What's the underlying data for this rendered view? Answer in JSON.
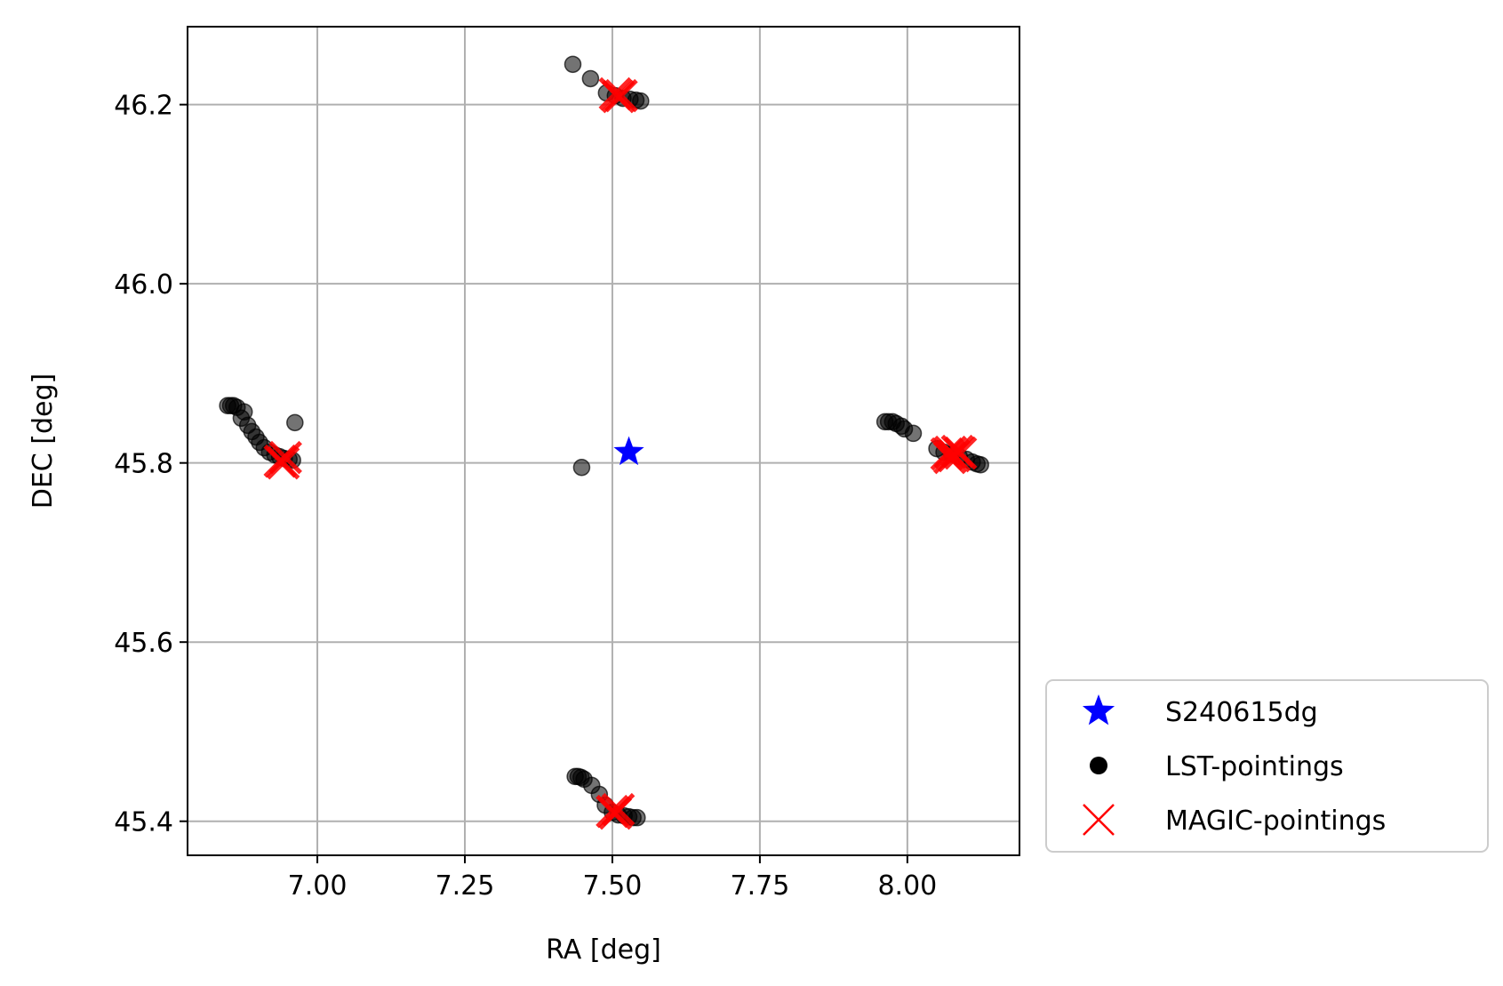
{
  "chart_data": {
    "type": "scatter",
    "xlabel": "RA [deg]",
    "ylabel": "DEC [deg]",
    "xlim": [
      6.78,
      8.19
    ],
    "ylim": [
      45.362,
      46.287
    ],
    "xticks": [
      7.0,
      7.25,
      7.5,
      7.75,
      8.0
    ],
    "xtick_labels": [
      "7.00",
      "7.25",
      "7.50",
      "7.75",
      "8.00"
    ],
    "yticks": [
      45.4,
      45.6,
      45.8,
      46.0,
      46.2
    ],
    "ytick_labels": [
      "45.4",
      "45.6",
      "45.8",
      "46.0",
      "46.2"
    ],
    "grid": true,
    "legend_position": "lower-right-outside",
    "series": [
      {
        "name": "S240615dg",
        "marker": "star",
        "color": "#0000ff",
        "points": [
          [
            7.528,
            45.812
          ]
        ]
      },
      {
        "name": "LST-pointings",
        "marker": "circle",
        "color": "#000000",
        "alpha": 0.55,
        "points": [
          [
            7.433,
            46.245
          ],
          [
            7.463,
            46.229
          ],
          [
            7.49,
            46.213
          ],
          [
            7.505,
            46.21
          ],
          [
            7.518,
            46.207
          ],
          [
            7.53,
            46.206
          ],
          [
            7.54,
            46.205
          ],
          [
            7.548,
            46.204
          ],
          [
            6.848,
            45.864
          ],
          [
            6.853,
            45.864
          ],
          [
            6.858,
            45.864
          ],
          [
            6.864,
            45.862
          ],
          [
            6.876,
            45.857
          ],
          [
            6.871,
            45.85
          ],
          [
            6.882,
            45.842
          ],
          [
            6.889,
            45.835
          ],
          [
            6.896,
            45.829
          ],
          [
            6.902,
            45.823
          ],
          [
            6.91,
            45.817
          ],
          [
            6.919,
            45.812
          ],
          [
            6.928,
            45.809
          ],
          [
            6.936,
            45.807
          ],
          [
            6.944,
            45.805
          ],
          [
            6.952,
            45.804
          ],
          [
            6.958,
            45.803
          ],
          [
            6.962,
            45.845
          ],
          [
            7.448,
            45.795
          ],
          [
            7.962,
            45.846
          ],
          [
            7.968,
            45.846
          ],
          [
            7.975,
            45.846
          ],
          [
            7.981,
            45.844
          ],
          [
            7.99,
            45.841
          ],
          [
            7.995,
            45.838
          ],
          [
            8.01,
            45.833
          ],
          [
            8.05,
            45.816
          ],
          [
            8.062,
            45.812
          ],
          [
            8.075,
            45.81
          ],
          [
            8.088,
            45.807
          ],
          [
            8.1,
            45.804
          ],
          [
            8.11,
            45.801
          ],
          [
            8.118,
            45.799
          ],
          [
            8.124,
            45.798
          ],
          [
            7.437,
            45.45
          ],
          [
            7.442,
            45.45
          ],
          [
            7.447,
            45.449
          ],
          [
            7.452,
            45.447
          ],
          [
            7.465,
            45.44
          ],
          [
            7.478,
            45.43
          ],
          [
            7.488,
            45.418
          ],
          [
            7.5,
            45.41
          ],
          [
            7.51,
            45.407
          ],
          [
            7.52,
            45.406
          ],
          [
            7.528,
            45.405
          ],
          [
            7.535,
            45.404
          ],
          [
            7.542,
            45.404
          ]
        ]
      },
      {
        "name": "MAGIC-pointings",
        "marker": "x",
        "color": "#ff0000",
        "points": [
          [
            7.505,
            46.212
          ],
          [
            7.51,
            46.209
          ],
          [
            7.515,
            46.21
          ],
          [
            6.937,
            45.802
          ],
          [
            6.942,
            45.8
          ],
          [
            6.946,
            45.806
          ],
          [
            8.067,
            45.81
          ],
          [
            8.073,
            45.812
          ],
          [
            8.079,
            45.808
          ],
          [
            8.085,
            45.813
          ],
          [
            8.09,
            45.811
          ],
          [
            8.072,
            45.806
          ],
          [
            7.5,
            45.411
          ],
          [
            7.505,
            45.409
          ],
          [
            7.51,
            45.413
          ]
        ]
      }
    ]
  }
}
